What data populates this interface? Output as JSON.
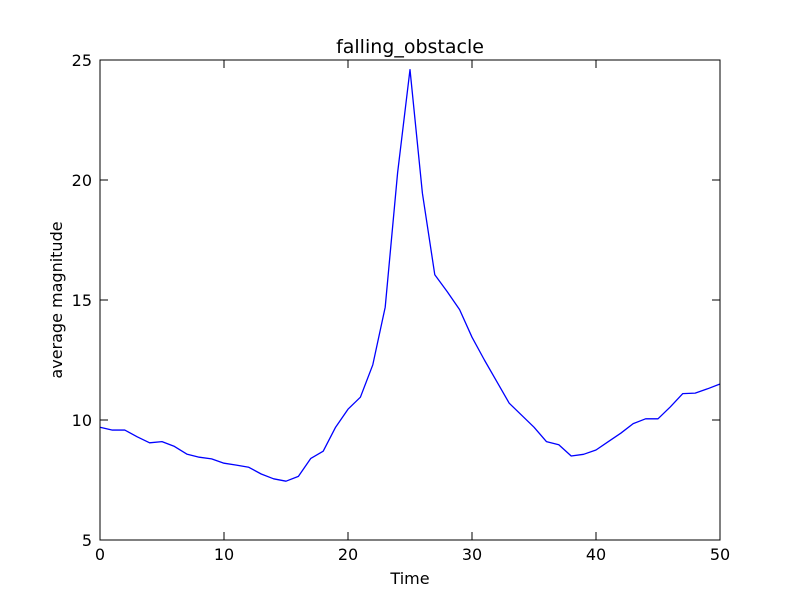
{
  "chart_data": {
    "type": "line",
    "title": "falling_obstacle",
    "xlabel": "Time",
    "ylabel": "average magnitude",
    "xlim": [
      0,
      50
    ],
    "ylim": [
      5,
      25
    ],
    "xticks": [
      0,
      10,
      20,
      30,
      40,
      50
    ],
    "yticks": [
      5,
      10,
      15,
      20,
      25
    ],
    "grid": false,
    "legend": "none",
    "series": [
      {
        "color": "#0000ff",
        "x": [
          0,
          1,
          2,
          3,
          4,
          5,
          6,
          7,
          8,
          9,
          10,
          11,
          12,
          13,
          14,
          15,
          16,
          17,
          18,
          19,
          20,
          21,
          22,
          23,
          24,
          25,
          26,
          27,
          28,
          29,
          30,
          31,
          32,
          33,
          34,
          35,
          36,
          37,
          38,
          39,
          40,
          41,
          42,
          43,
          44,
          45,
          46,
          47,
          48,
          49,
          50
        ],
        "y": [
          9.7,
          9.58,
          9.58,
          9.3,
          9.05,
          9.1,
          8.9,
          8.58,
          8.45,
          8.38,
          8.2,
          8.12,
          8.03,
          7.75,
          7.55,
          7.45,
          7.65,
          8.4,
          8.7,
          9.7,
          10.45,
          10.95,
          12.3,
          14.7,
          20.3,
          24.6,
          19.45,
          16.05,
          15.35,
          14.6,
          13.45,
          12.5,
          11.6,
          10.7,
          10.2,
          9.7,
          9.1,
          8.97,
          8.5,
          8.57,
          8.75,
          9.1,
          9.45,
          9.85,
          10.05,
          10.05,
          10.55,
          11.1,
          11.12,
          11.3,
          11.5
        ]
      }
    ]
  }
}
